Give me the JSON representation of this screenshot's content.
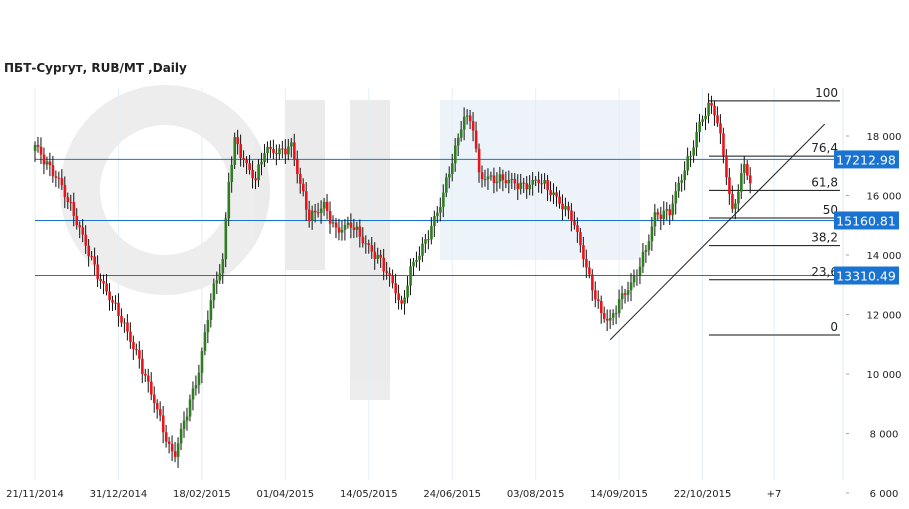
{
  "title": "ПБТ-Сургут,  RUB/MT ,Daily",
  "chart_data": {
    "type": "candlestick",
    "title": "ПБТ-Сургут,  RUB/MT ,Daily",
    "x_tick_labels": [
      {
        "bar": 0,
        "label": "21/11/2014"
      },
      {
        "bar": 28,
        "label": "31/12/2014"
      },
      {
        "bar": 56,
        "label": "18/02/2015"
      },
      {
        "bar": 84,
        "label": "01/04/2015"
      },
      {
        "bar": 112,
        "label": "14/05/2015"
      },
      {
        "bar": 140,
        "label": "24/06/2015"
      },
      {
        "bar": 168,
        "label": "03/08/2015"
      },
      {
        "bar": 196,
        "label": "14/09/2015"
      },
      {
        "bar": 224,
        "label": "22/10/2015"
      },
      {
        "bar": 248,
        "label": "+7"
      }
    ],
    "y_ticks": [
      {
        "value": 6000,
        "label": "6 000"
      },
      {
        "value": 8000,
        "label": "8 000"
      },
      {
        "value": 10000,
        "label": "10 000"
      },
      {
        "value": 12000,
        "label": "12 000"
      },
      {
        "value": 14000,
        "label": "14 000"
      },
      {
        "value": 16000,
        "label": "16 000"
      },
      {
        "value": 18000,
        "label": "18 000"
      }
    ],
    "ylim": [
      6000,
      19700
    ],
    "grid": "vertical",
    "up_color": "#2e7d1f",
    "down_color": "#e8141a",
    "close_path": [
      [
        0,
        17700
      ],
      [
        8,
        16500
      ],
      [
        15,
        14850
      ],
      [
        22,
        13150
      ],
      [
        29,
        11800
      ],
      [
        35,
        10500
      ],
      [
        40,
        9100
      ],
      [
        45,
        7450
      ],
      [
        47,
        7300
      ],
      [
        50,
        8450
      ],
      [
        55,
        10100
      ],
      [
        59,
        12500
      ],
      [
        63,
        13800
      ],
      [
        65,
        16500
      ],
      [
        67,
        17900
      ],
      [
        71,
        17000
      ],
      [
        74,
        16500
      ],
      [
        77,
        17500
      ],
      [
        82,
        17500
      ],
      [
        86,
        17700
      ],
      [
        89,
        16350
      ],
      [
        92,
        15200
      ],
      [
        97,
        15700
      ],
      [
        101,
        14850
      ],
      [
        106,
        15000
      ],
      [
        111,
        14350
      ],
      [
        116,
        13850
      ],
      [
        121,
        12800
      ],
      [
        123,
        12150
      ],
      [
        126,
        13500
      ],
      [
        131,
        14500
      ],
      [
        136,
        15700
      ],
      [
        141,
        17500
      ],
      [
        144,
        18700
      ],
      [
        147,
        18400
      ],
      [
        149,
        16700
      ],
      [
        154,
        16500
      ],
      [
        159,
        16500
      ],
      [
        164,
        16350
      ],
      [
        169,
        16500
      ],
      [
        174,
        16000
      ],
      [
        180,
        15350
      ],
      [
        183,
        14350
      ],
      [
        186,
        13150
      ],
      [
        190,
        12000
      ],
      [
        193,
        11800
      ],
      [
        196,
        12500
      ],
      [
        201,
        13150
      ],
      [
        205,
        14150
      ],
      [
        208,
        15350
      ],
      [
        213,
        15500
      ],
      [
        216,
        16350
      ],
      [
        220,
        17350
      ],
      [
        223,
        18400
      ],
      [
        226,
        19050
      ],
      [
        228,
        18900
      ],
      [
        230,
        18000
      ],
      [
        232,
        16700
      ],
      [
        234,
        15350
      ],
      [
        236,
        16200
      ],
      [
        238,
        17000
      ],
      [
        240,
        16500
      ]
    ],
    "horizontal_levels": [
      {
        "value": 17212.98,
        "label": "17212.98"
      },
      {
        "value": 15160.81,
        "label": "15160.81"
      },
      {
        "value": 13310.49,
        "label": "13310.49"
      }
    ],
    "level_color": "#1a73d1",
    "fibonacci": {
      "high": 19180,
      "low": 11310,
      "levels": [
        {
          "pct": 100,
          "label": "100"
        },
        {
          "pct": 76.4,
          "label": "76,4"
        },
        {
          "pct": 61.8,
          "label": "61,8"
        },
        {
          "pct": 50,
          "label": "50"
        },
        {
          "pct": 38.2,
          "label": "38,2"
        },
        {
          "pct": 23.6,
          "label": "23,6"
        },
        {
          "pct": 0,
          "label": "0"
        }
      ]
    },
    "trendline": {
      "from": [
        193,
        11150
      ],
      "to": [
        265,
        18400
      ]
    }
  }
}
